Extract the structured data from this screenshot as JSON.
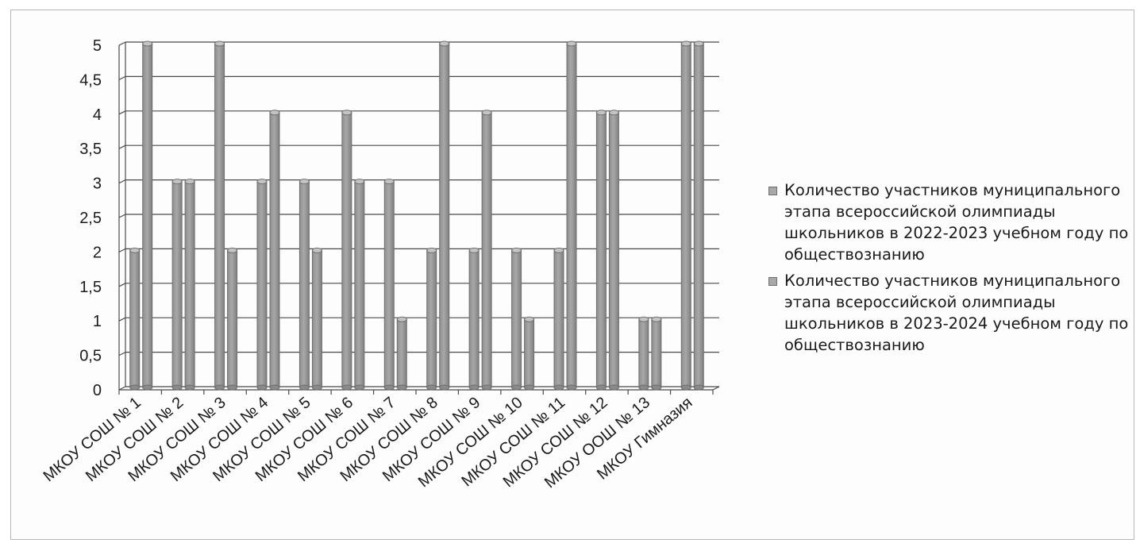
{
  "chart_data": {
    "type": "bar",
    "categories": [
      "МКОУ СОШ № 1",
      "МКОУ СОШ № 2",
      "МКОУ СОШ № 3",
      "МКОУ СОШ № 4",
      "МКОУ СОШ № 5",
      "МКОУ СОШ № 6",
      "МКОУ СОШ № 7",
      "МКОУ СОШ № 8",
      "МКОУ СОШ № 9",
      "МКОУ СОШ № 10",
      "МКОУ СОШ № 11",
      "МКОУ СОШ № 12",
      "МКОУ ООШ № 13",
      "МКОУ Гимназия"
    ],
    "series": [
      {
        "name": "Количество участников муниципального этапа всероссийской олимпиады школьников в 2022-2023 учебном году по  обществознанию",
        "values": [
          2,
          3,
          5,
          3,
          3,
          4,
          3,
          2,
          2,
          2,
          2,
          4,
          1,
          5
        ]
      },
      {
        "name": "Количество участников муниципального этапа всероссийской олимпиады школьников в 2023-2024 учебном году по обществознанию",
        "values": [
          5,
          3,
          2,
          4,
          2,
          3,
          1,
          5,
          4,
          1,
          5,
          4,
          1,
          5
        ]
      }
    ],
    "y_ticks": [
      "0",
      "0,5",
      "1",
      "1,5",
      "2",
      "2,5",
      "3",
      "3,5",
      "4",
      "4,5",
      "5"
    ],
    "ylim": [
      0,
      5
    ],
    "grid": true,
    "legend_position": "right",
    "bar_style": "3d-cylinder",
    "colors": {
      "bar_fill": "#a8a8a8",
      "bar_edge": "#6f6f6f",
      "grid": "#4a4a4a",
      "text": "#1a1a1a"
    }
  }
}
